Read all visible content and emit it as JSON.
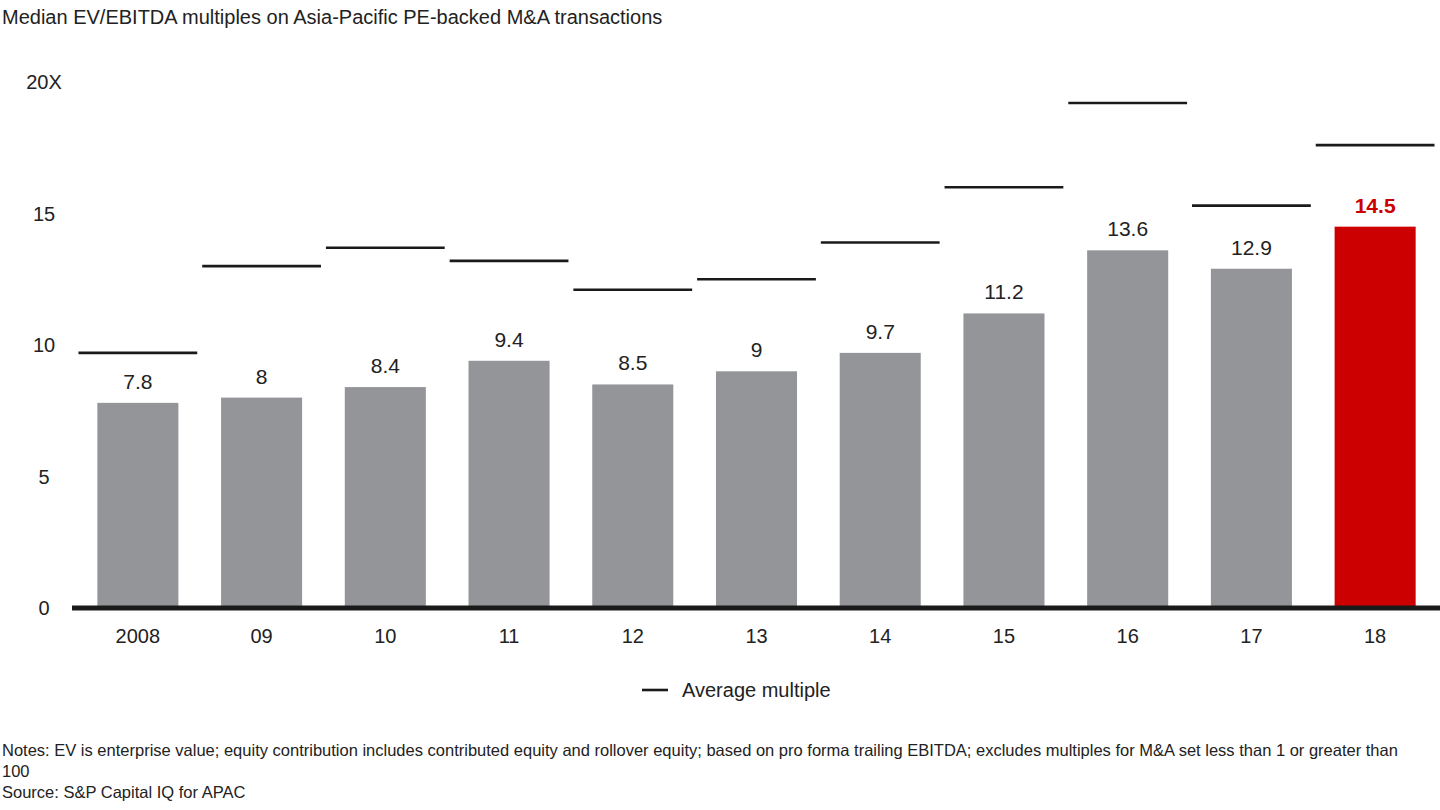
{
  "chart_data": {
    "type": "bar",
    "title": "Median EV/EBITDA multiples on Asia-Pacific PE-backed M&A transactions",
    "categories": [
      "2008",
      "09",
      "10",
      "11",
      "12",
      "13",
      "14",
      "15",
      "16",
      "17",
      "18"
    ],
    "series": [
      {
        "type": "bar",
        "colors": [
          "#939598",
          "#939598",
          "#939598",
          "#939598",
          "#939598",
          "#939598",
          "#939598",
          "#939598",
          "#939598",
          "#939598",
          "#cc0000"
        ],
        "values": [
          7.8,
          8.0,
          8.4,
          9.4,
          8.5,
          9.0,
          9.7,
          11.2,
          13.6,
          12.9,
          14.5
        ]
      },
      {
        "name": "Average multiple",
        "type": "line",
        "line_style": "none",
        "marker": "dash",
        "color": "#1a1a1a",
        "values": [
          9.7,
          13.0,
          13.7,
          13.2,
          12.1,
          12.5,
          13.9,
          16.0,
          19.2,
          15.3,
          17.6
        ]
      }
    ],
    "ylim": [
      0,
      20
    ],
    "yticks": [
      0,
      5,
      10,
      15,
      {
        "value": 20,
        "label": "20X"
      }
    ],
    "grid": false,
    "data_labels": true,
    "legend": "bottom",
    "notes": "Notes: EV is enterprise value; equity contribution includes contributed equity and rollover equity; based on pro forma trailing EBITDA; excludes multiples for M&A set less than 1 or greater than 100",
    "source": "Source: S&P Capital IQ for APAC"
  }
}
